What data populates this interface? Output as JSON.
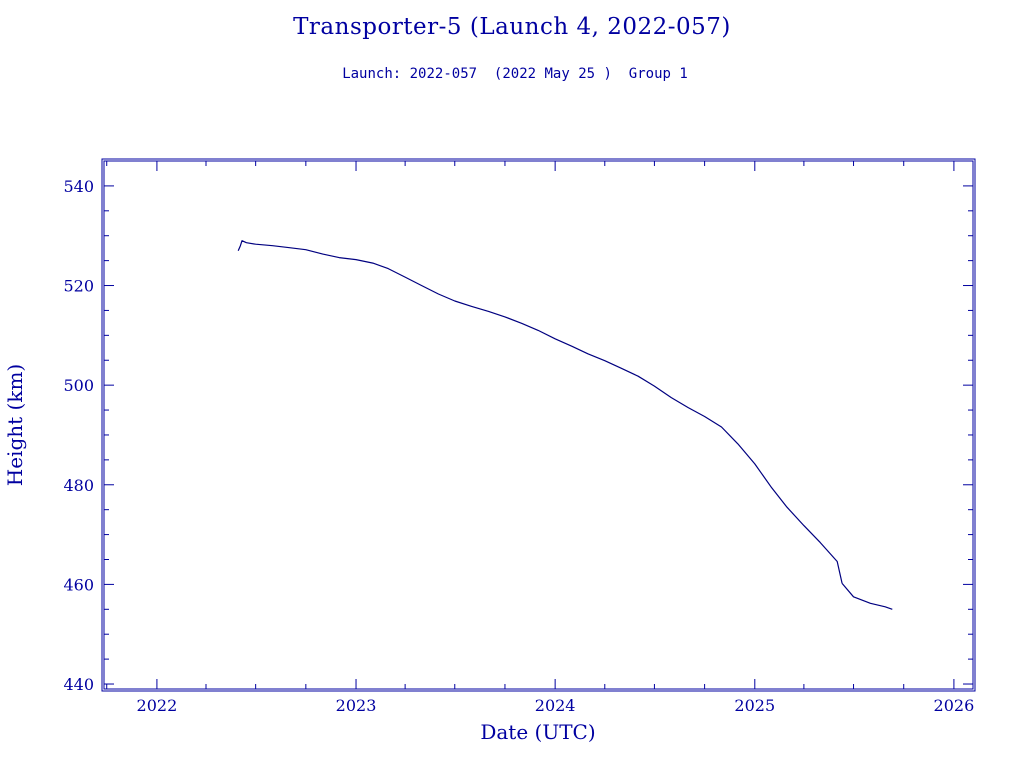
{
  "chart_data": {
    "type": "line",
    "title": "Transporter-5 (Launch 4, 2022-057)",
    "subtitle": "Launch: 2022-057  (2022 May 25 )  Group 1",
    "xlabel": "Date (UTC)",
    "ylabel": "Height (km)",
    "xlim": [
      "2021-09-26",
      "2026-02-05"
    ],
    "ylim": [
      439,
      545
    ],
    "xticks": [
      "2022",
      "2023",
      "2024",
      "2025",
      "2026"
    ],
    "yticks": [
      440,
      460,
      480,
      500,
      520,
      540
    ],
    "grid": false,
    "colors": {
      "axis": "#0000a0",
      "line": "#000080",
      "text": "#0000a0"
    },
    "series": [
      {
        "x": [
          "2022-05-30",
          "2022-06-03",
          "2022-06-06",
          "2022-06-14",
          "2022-07-01",
          "2022-08-01",
          "2022-09-01",
          "2022-10-01",
          "2022-11-01",
          "2022-12-01",
          "2023-01-01",
          "2023-02-01",
          "2023-03-01",
          "2023-04-01",
          "2023-05-01",
          "2023-06-01",
          "2023-07-01",
          "2023-08-01",
          "2023-09-01",
          "2023-10-01",
          "2023-11-01",
          "2023-12-01",
          "2024-01-01",
          "2024-02-01",
          "2024-03-01",
          "2024-04-01",
          "2024-05-01",
          "2024-06-01",
          "2024-07-01",
          "2024-08-01",
          "2024-09-01",
          "2024-10-01",
          "2024-11-01",
          "2024-12-01",
          "2025-01-01",
          "2025-02-01",
          "2025-03-01",
          "2025-04-01",
          "2025-05-01",
          "2025-06-01",
          "2025-06-10"
        ],
        "y": [
          527.0,
          528.0,
          529.0,
          528.6,
          528.3,
          528.0,
          527.6,
          527.2,
          526.3,
          525.6,
          525.2,
          524.5,
          523.4,
          521.7,
          520.0,
          518.3,
          516.9,
          515.8,
          514.8,
          513.7,
          512.4,
          511.0,
          509.3,
          507.8,
          506.3,
          504.9,
          503.4,
          501.8,
          499.8,
          497.5,
          495.5,
          493.7,
          491.6,
          488.2,
          484.2,
          479.4,
          475.5,
          471.8,
          468.4,
          464.6,
          460.2
        ]
      }
    ],
    "series_tail": {
      "x": [
        "2025-06-10",
        "2025-07-01",
        "2025-08-01",
        "2025-08-28",
        "2025-09-10"
      ],
      "y": [
        460.2,
        457.5,
        456.2,
        455.5,
        455.0
      ]
    }
  }
}
